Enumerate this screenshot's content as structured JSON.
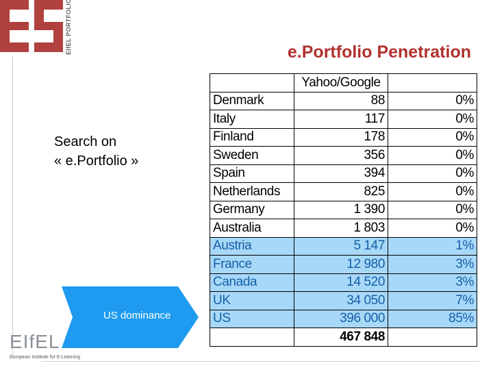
{
  "logo": {
    "text": "EIfEL PORTFOLIO",
    "color": "#b0413e"
  },
  "title": "e.Portfolio Penetration",
  "search_line1": "Search on",
  "search_line2": "« e.Portfolio »",
  "arrow_label": "US dominance",
  "table": {
    "header": "Yahoo/Google",
    "rows": [
      {
        "country": "Denmark",
        "count": "88",
        "pct": "0%",
        "highlight": false
      },
      {
        "country": "Italy",
        "count": "117",
        "pct": "0%",
        "highlight": false
      },
      {
        "country": "Finland",
        "count": "178",
        "pct": "0%",
        "highlight": false
      },
      {
        "country": "Sweden",
        "count": "356",
        "pct": "0%",
        "highlight": false
      },
      {
        "country": "Spain",
        "count": "394",
        "pct": "0%",
        "highlight": false
      },
      {
        "country": "Netherlands",
        "count": "825",
        "pct": "0%",
        "highlight": false
      },
      {
        "country": "Germany",
        "count": "1 390",
        "pct": "0%",
        "highlight": false
      },
      {
        "country": "Australia",
        "count": "1 803",
        "pct": "0%",
        "highlight": false
      },
      {
        "country": "Austria",
        "count": "5 147",
        "pct": "1%",
        "highlight": true
      },
      {
        "country": "France",
        "count": "12 980",
        "pct": "3%",
        "highlight": true
      },
      {
        "country": "Canada",
        "count": "14 520",
        "pct": "3%",
        "highlight": true
      },
      {
        "country": "UK",
        "count": "34 050",
        "pct": "7%",
        "highlight": true
      },
      {
        "country": "US",
        "count": "396 000",
        "pct": "85%",
        "highlight": true
      }
    ],
    "total": "467 848"
  },
  "footer": {
    "brand": "EIfEL",
    "subtitle": "European Institute for E-Learning"
  },
  "colors": {
    "title": "#b0312e",
    "highlight_row": "#a8d8f8",
    "arrow": "#1e9bf0"
  }
}
